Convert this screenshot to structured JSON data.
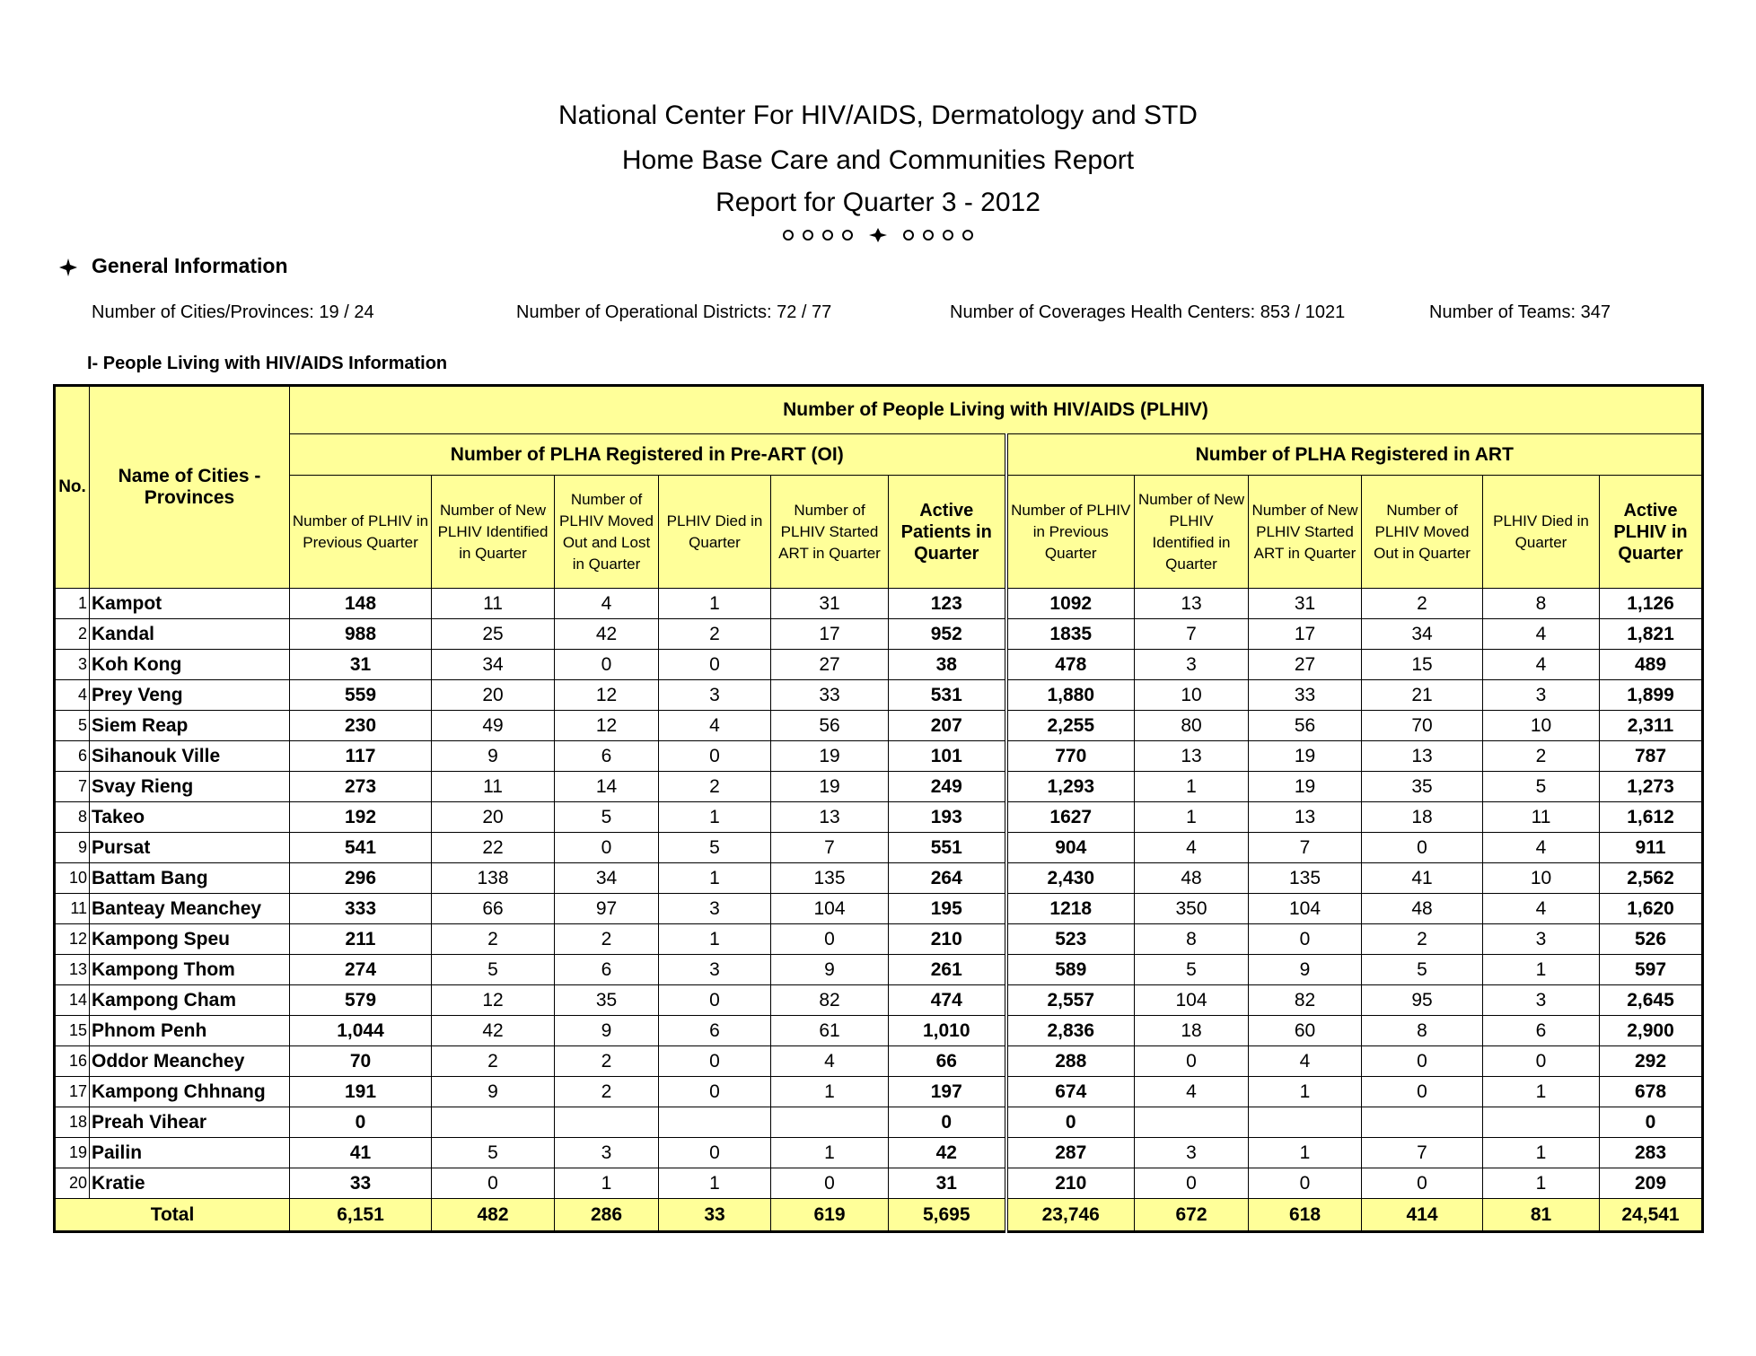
{
  "header": {
    "lines": [
      "National Center For HIV/AIDS, Dermatology and STD",
      "Home Base Care and Communities Report",
      "Report  for Quarter 3 - 2012"
    ]
  },
  "general": {
    "title": "General Information",
    "items": [
      "Number of Cities/Provinces: 19 / 24",
      "Number of Operational Districts: 72 / 77",
      "Number of Coverages Health Centers: 853 / 1021",
      "Number of Teams: 347"
    ]
  },
  "section_title": "I- People Living with HIV/AIDS Information",
  "table": {
    "group_title": "Number of People Living with HIV/AIDS (PLHIV)",
    "subgroups": [
      "Number of PLHA Registered in Pre-ART (OI)",
      "Number of PLHA Registered in ART"
    ],
    "no_header": "No.",
    "name_header": "Name of Cities - Provinces",
    "columns": [
      "Number of PLHIV in Previous Quarter",
      "Number of New PLHIV Identified in Quarter",
      "Number of PLHIV Moved Out and Lost in Quarter",
      "PLHIV Died in Quarter",
      "Number of PLHIV Started ART in Quarter",
      "Active Patients in Quarter",
      "Number of PLHIV in Previous Quarter",
      "Number of New PLHIV Identified in Quarter",
      "Number of New PLHIV Started ART in Quarter",
      "Number of PLHIV Moved Out in Quarter",
      "PLHIV Died in Quarter",
      "Active PLHIV in Quarter"
    ],
    "rows": [
      [
        "1",
        "Kampot",
        "148",
        "11",
        "4",
        "1",
        "31",
        "123",
        "1092",
        "13",
        "31",
        "2",
        "8",
        "1,126"
      ],
      [
        "2",
        "Kandal",
        "988",
        "25",
        "42",
        "2",
        "17",
        "952",
        "1835",
        "7",
        "17",
        "34",
        "4",
        "1,821"
      ],
      [
        "3",
        "Koh Kong",
        "31",
        "34",
        "0",
        "0",
        "27",
        "38",
        "478",
        "3",
        "27",
        "15",
        "4",
        "489"
      ],
      [
        "4",
        "Prey Veng",
        "559",
        "20",
        "12",
        "3",
        "33",
        "531",
        "1,880",
        "10",
        "33",
        "21",
        "3",
        "1,899"
      ],
      [
        "5",
        "Siem Reap",
        "230",
        "49",
        "12",
        "4",
        "56",
        "207",
        "2,255",
        "80",
        "56",
        "70",
        "10",
        "2,311"
      ],
      [
        "6",
        "Sihanouk Ville",
        "117",
        "9",
        "6",
        "0",
        "19",
        "101",
        "770",
        "13",
        "19",
        "13",
        "2",
        "787"
      ],
      [
        "7",
        "Svay Rieng",
        "273",
        "11",
        "14",
        "2",
        "19",
        "249",
        "1,293",
        "1",
        "19",
        "35",
        "5",
        "1,273"
      ],
      [
        "8",
        "Takeo",
        "192",
        "20",
        "5",
        "1",
        "13",
        "193",
        "1627",
        "1",
        "13",
        "18",
        "11",
        "1,612"
      ],
      [
        "9",
        "Pursat",
        "541",
        "22",
        "0",
        "5",
        "7",
        "551",
        "904",
        "4",
        "7",
        "0",
        "4",
        "911"
      ],
      [
        "10",
        "Battam Bang",
        "296",
        "138",
        "34",
        "1",
        "135",
        "264",
        "2,430",
        "48",
        "135",
        "41",
        "10",
        "2,562"
      ],
      [
        "11",
        "Banteay Meanchey",
        "333",
        "66",
        "97",
        "3",
        "104",
        "195",
        "1218",
        "350",
        "104",
        "48",
        "4",
        "1,620"
      ],
      [
        "12",
        "Kampong Speu",
        "211",
        "2",
        "2",
        "1",
        "0",
        "210",
        "523",
        "8",
        "0",
        "2",
        "3",
        "526"
      ],
      [
        "13",
        "Kampong Thom",
        "274",
        "5",
        "6",
        "3",
        "9",
        "261",
        "589",
        "5",
        "9",
        "5",
        "1",
        "597"
      ],
      [
        "14",
        "Kampong Cham",
        "579",
        "12",
        "35",
        "0",
        "82",
        "474",
        "2,557",
        "104",
        "82",
        "95",
        "3",
        "2,645"
      ],
      [
        "15",
        "Phnom Penh",
        "1,044",
        "42",
        "9",
        "6",
        "61",
        "1,010",
        "2,836",
        "18",
        "60",
        "8",
        "6",
        "2,900"
      ],
      [
        "16",
        "Oddor Meanchey",
        "70",
        "2",
        "2",
        "0",
        "4",
        "66",
        "288",
        "0",
        "4",
        "0",
        "0",
        "292"
      ],
      [
        "17",
        "Kampong Chhnang",
        "191",
        "9",
        "2",
        "0",
        "1",
        "197",
        "674",
        "4",
        "1",
        "0",
        "1",
        "678"
      ],
      [
        "18",
        "Preah Vihear",
        "0",
        null,
        null,
        null,
        null,
        "0",
        "0",
        null,
        null,
        null,
        null,
        "0"
      ],
      [
        "19",
        "Pailin",
        "41",
        "5",
        "3",
        "0",
        "1",
        "42",
        "287",
        "3",
        "1",
        "7",
        "1",
        "283"
      ],
      [
        "20",
        "Kratie",
        "33",
        "0",
        "1",
        "1",
        "0",
        "31",
        "210",
        "0",
        "0",
        "0",
        "1",
        "209"
      ]
    ],
    "total_label": "Total",
    "total": [
      "6,151",
      "482",
      "286",
      "33",
      "619",
      "5,695",
      "23,746",
      "672",
      "618",
      "414",
      "81",
      "24,541"
    ]
  }
}
